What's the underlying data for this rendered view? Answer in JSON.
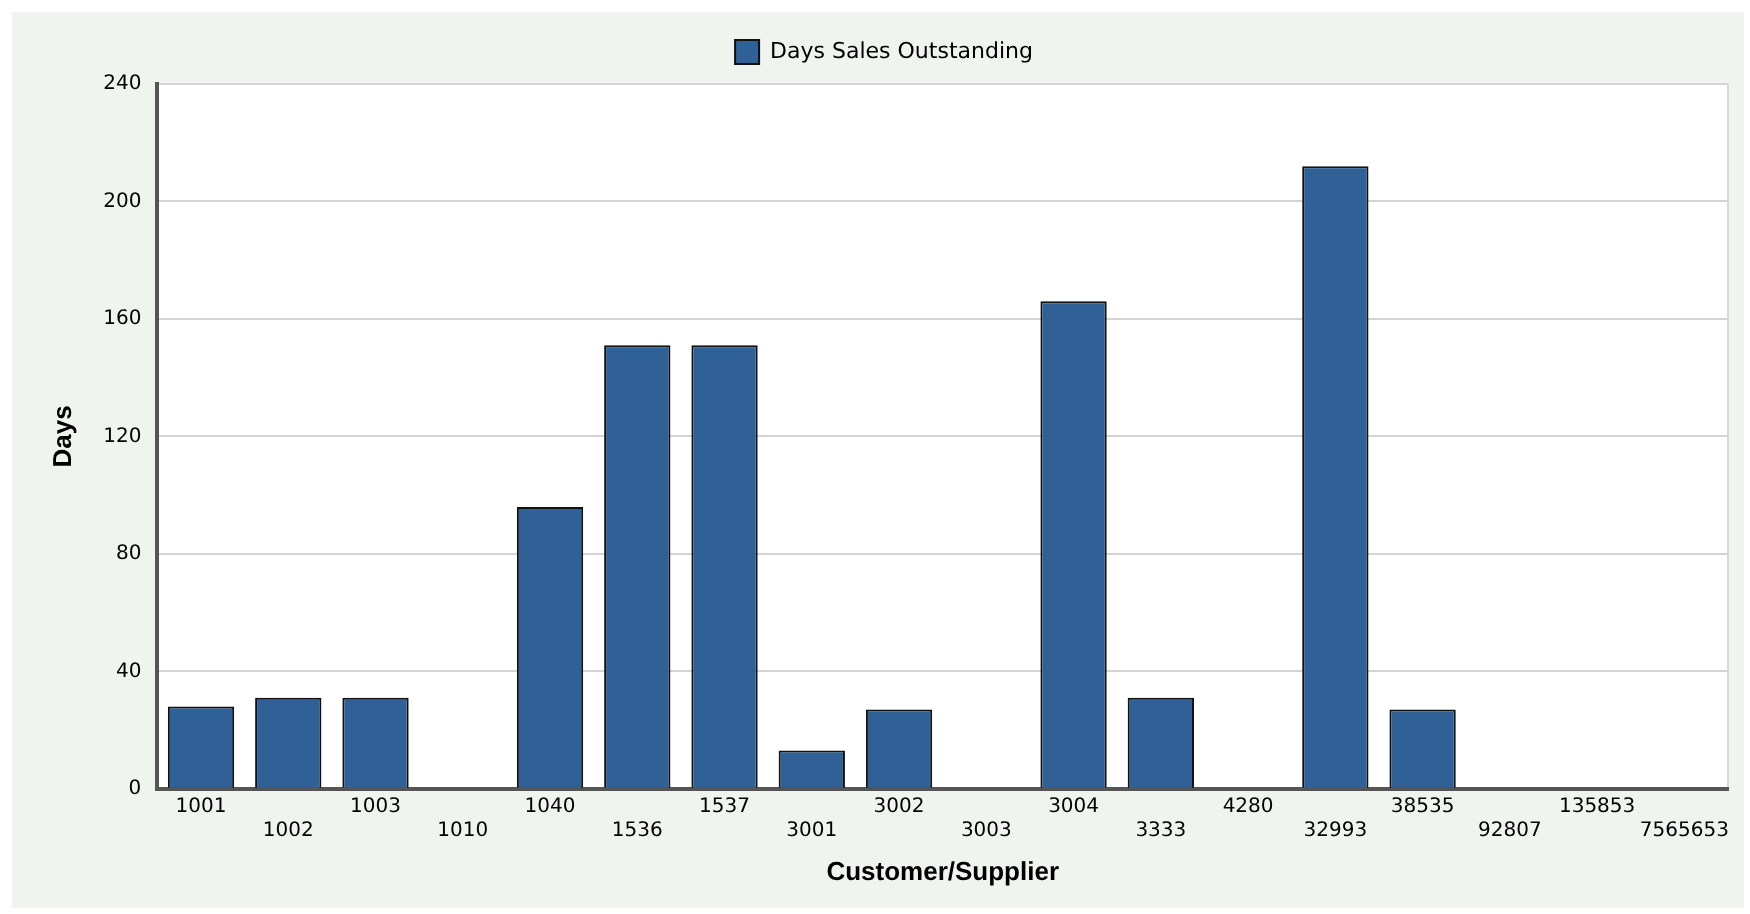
{
  "chart_data": {
    "type": "bar",
    "xlabel": "Customer/Supplier",
    "ylabel": "Days",
    "categories": [
      "1001",
      "1002",
      "1003",
      "1010",
      "1040",
      "1536",
      "1537",
      "3001",
      "3002",
      "3003",
      "3004",
      "3333",
      "4280",
      "32993",
      "38535",
      "92807",
      "135853",
      "7565653"
    ],
    "series": [
      {
        "name": "Days Sales Outstanding",
        "color": "#2f6096",
        "values": [
          28,
          31,
          31,
          0,
          96,
          151,
          151,
          13,
          27,
          0,
          166,
          31,
          0,
          212,
          27,
          0,
          0,
          0
        ]
      }
    ],
    "ylim": [
      0,
      240
    ],
    "yticks": [
      0,
      40,
      80,
      120,
      160,
      200,
      240
    ],
    "grid": "y",
    "legend": "top"
  }
}
